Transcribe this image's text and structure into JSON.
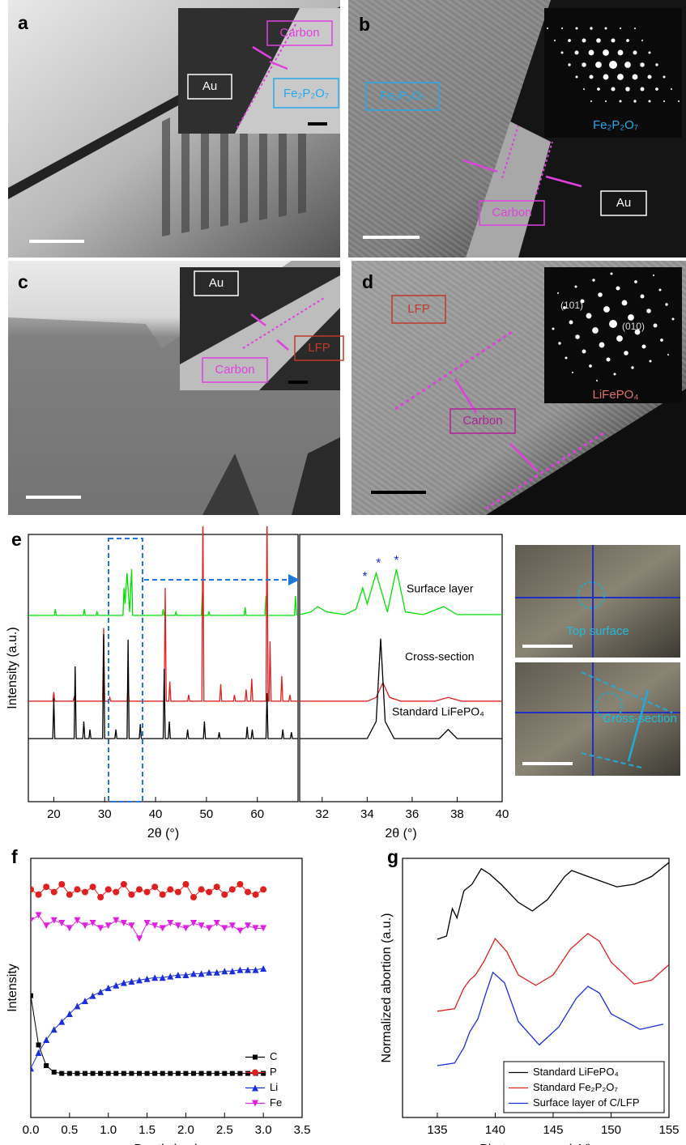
{
  "panels": [
    {
      "label": "a",
      "texts": [
        "Carbon",
        "Au",
        "Fe₂P₂O₇"
      ]
    },
    {
      "label": "b",
      "texts": [
        "Fe₂P₂O₇",
        "Fe₂P₂O₇",
        "Carbon",
        "Au"
      ]
    },
    {
      "label": "c",
      "texts": [
        "Au",
        "Carbon",
        "LFP"
      ]
    },
    {
      "label": "d",
      "texts": [
        "LFP",
        "Carbon",
        "(101)",
        "(010)",
        "LiFePO₄"
      ]
    }
  ],
  "photo_labels": [
    "Top surface",
    "Cross-section"
  ],
  "chart_data": [
    {
      "type": "line",
      "label": "e",
      "ylabel": "Intensity (a.u.)",
      "xlabel": "2θ (°)",
      "xlim": [
        15,
        68
      ],
      "ylim": [
        0,
        100
      ],
      "xticks": [
        20,
        30,
        40,
        50,
        60
      ],
      "series": [
        {
          "color": "#00e000",
          "x": [
            15,
            20.1,
            20.3,
            20.5,
            25.8,
            26,
            26.2,
            28.3,
            28.5,
            28.7,
            33.6,
            33.8,
            34,
            34.4,
            34.9,
            35.3,
            35.5,
            41.3,
            41.5,
            41.7,
            43.8,
            44,
            44.2,
            49,
            49.2,
            49.4,
            50.3,
            50.5,
            50.7,
            57.4,
            57.6,
            57.8,
            61.5,
            61.7,
            61.9,
            67.3,
            67.5,
            67.7
          ],
          "values": [
            69.7,
            69.7,
            72,
            69.7,
            69.7,
            72,
            69.7,
            69.7,
            71,
            69.7,
            69.7,
            80,
            74,
            85.5,
            71,
            87,
            69.7,
            69.7,
            72,
            69.7,
            69.7,
            71,
            69.7,
            69.7,
            78,
            69.7,
            69.7,
            71,
            69.7,
            69.7,
            72.7,
            69.7,
            69.7,
            77,
            69.7,
            69.7,
            77,
            69.7
          ]
        },
        {
          "color": "#e02020",
          "x": [
            15,
            19.8,
            20,
            20.2,
            23.8,
            24,
            24.2,
            29.6,
            29.8,
            30,
            30.8,
            31,
            31.2,
            34.4,
            34.6,
            34.8,
            41.7,
            41.9,
            42.1,
            42.6,
            42.8,
            43,
            46.3,
            46.5,
            46.7,
            49.1,
            49.3,
            49.5,
            52.6,
            52.8,
            53,
            55.3,
            55.5,
            55.7,
            57.6,
            57.8,
            58,
            58.7,
            58.9,
            59.1,
            61.7,
            61.9,
            62.1,
            62.3,
            62.5,
            62.7,
            64.6,
            64.8,
            65,
            66.2,
            66.4,
            66.6,
            68
          ],
          "values": [
            37.6,
            37.6,
            41,
            37.6,
            37.6,
            39,
            37.6,
            37.6,
            65,
            37.6,
            37.6,
            39,
            37.6,
            37.6,
            44,
            37.6,
            37.6,
            80,
            37.6,
            37.6,
            45,
            37.6,
            37.6,
            40,
            37.6,
            37.6,
            110,
            37.6,
            37.6,
            44,
            37.6,
            37.6,
            40,
            37.6,
            37.6,
            42,
            37.6,
            37.6,
            46,
            37.6,
            37.6,
            110,
            37.6,
            37.6,
            60,
            37.6,
            37.6,
            47,
            37.6,
            37.6,
            40,
            37.6,
            37.6
          ]
        },
        {
          "color": "#000000",
          "x": [
            15,
            19.8,
            20,
            20.2,
            24,
            24.2,
            24.4,
            25.7,
            25.9,
            26.1,
            26.9,
            27.1,
            27.3,
            29.6,
            29.8,
            30,
            32,
            32.2,
            32.4,
            34.4,
            34.6,
            34.8,
            36.8,
            37,
            37.2,
            41.5,
            41.7,
            41.9,
            42.5,
            42.7,
            42.9,
            46.1,
            46.3,
            46.5,
            49.4,
            49.6,
            49.8,
            52.3,
            52.5,
            52.7,
            57.8,
            58,
            58.2,
            58.8,
            59,
            59.2,
            61.7,
            61.9,
            62.1,
            64.8,
            65,
            65.2,
            66.5,
            66.7,
            66.9,
            68
          ],
          "values": [
            23.6,
            23.6,
            38.8,
            23.6,
            23.6,
            50.6,
            23.6,
            23.6,
            30,
            23.6,
            23.6,
            27,
            23.6,
            23.6,
            62.7,
            23.6,
            23.6,
            27,
            23.6,
            23.6,
            60.6,
            23.6,
            23.6,
            29,
            23.6,
            23.6,
            49.7,
            23.6,
            23.6,
            30,
            23.6,
            23.6,
            27,
            23.6,
            23.6,
            30,
            23.6,
            23.6,
            26,
            23.6,
            23.6,
            28,
            23.6,
            23.6,
            27,
            23.6,
            23.6,
            40.6,
            23.6,
            23.6,
            27,
            23.6,
            23.6,
            26,
            23.6,
            23.6
          ]
        }
      ]
    },
    {
      "type": "line",
      "xlabel": "2θ (°)",
      "xlim": [
        31,
        40
      ],
      "ylim": [
        0,
        100
      ],
      "xticks": [
        32,
        34,
        36,
        38,
        40
      ],
      "legend": "inline",
      "series": [
        {
          "name": "Surface layer",
          "color": "#00e000",
          "x": [
            31,
            31.5,
            31.8,
            32.2,
            33,
            33.5,
            33.8,
            34,
            34.4,
            34.9,
            35.3,
            35.7,
            36.5,
            37.4,
            38,
            40
          ],
          "values": [
            70,
            71,
            73,
            71,
            70,
            72,
            80,
            74,
            85.5,
            71,
            87,
            71,
            70,
            73,
            70,
            70
          ]
        },
        {
          "name": "Cross-section",
          "color": "#e02020",
          "x": [
            31,
            34,
            34.4,
            34.7,
            35,
            35.5,
            37,
            37.6,
            38.2,
            40
          ],
          "values": [
            37.6,
            37.6,
            39,
            44.5,
            39,
            37.6,
            37.6,
            39,
            37.6,
            37.6
          ]
        },
        {
          "name": "Standard LiFePO₄",
          "color": "#000000",
          "x": [
            31,
            34,
            34.4,
            34.6,
            34.8,
            35.2,
            37.2,
            37.6,
            38,
            40
          ],
          "values": [
            23.6,
            23.6,
            30,
            61,
            30,
            23.6,
            23.6,
            27,
            23.6,
            23.6
          ]
        }
      ],
      "annotations": [
        {
          "text": "*",
          "x": 33.9,
          "y": 84
        },
        {
          "text": "*",
          "x": 34.5,
          "y": 89
        },
        {
          "text": "*",
          "x": 35.3,
          "y": 90
        }
      ]
    },
    {
      "type": "line",
      "label": "f",
      "ylabel": "Intensity",
      "xlabel": "Depth (μm)",
      "xlim": [
        0,
        3.5
      ],
      "ylim": [
        0,
        100
      ],
      "xticks": [
        {
          "value": 0,
          "label": "0.0"
        },
        0.5,
        {
          "value": 1,
          "label": "1.0"
        },
        1.5,
        {
          "value": 2,
          "label": "2.0"
        },
        2.5,
        {
          "value": 3,
          "label": "3.0"
        },
        3.5
      ],
      "legend": "lower-right",
      "x": [
        0,
        0.1,
        0.2,
        0.3,
        0.4,
        0.5,
        0.6,
        0.7,
        0.8,
        0.9,
        1,
        1.1,
        1.2,
        1.3,
        1.4,
        1.5,
        1.6,
        1.7,
        1.8,
        1.9,
        2,
        2.1,
        2.2,
        2.3,
        2.4,
        2.5,
        2.6,
        2.7,
        2.8,
        2.9,
        3
      ],
      "series": [
        {
          "name": "C",
          "color": "#000000",
          "marker": "square",
          "values": [
            47,
            28,
            20,
            17.5,
            17,
            17,
            17,
            17,
            17,
            17,
            17,
            17,
            17,
            17,
            17,
            17,
            17,
            17,
            17,
            17,
            17,
            17,
            17,
            17,
            17,
            17,
            17,
            17,
            17,
            17,
            17
          ]
        },
        {
          "name": "P",
          "color": "#e02020",
          "marker": "circle",
          "values": [
            88,
            86,
            89,
            87,
            90,
            86,
            88,
            87,
            89,
            85,
            88,
            87,
            90,
            86,
            88,
            87,
            89,
            86,
            88,
            87,
            90,
            85,
            88,
            87,
            89,
            86,
            88,
            90,
            87,
            86,
            88
          ]
        },
        {
          "name": "Li",
          "color": "#1a2fd6",
          "marker": "triangle-up",
          "values": [
            19,
            25,
            30,
            34,
            37,
            40,
            43,
            45,
            47,
            48.5,
            50,
            51,
            52,
            52.5,
            53,
            53.5,
            54,
            54,
            54.5,
            55,
            55,
            55.5,
            55.5,
            56,
            56,
            56.5,
            56.5,
            57,
            57,
            57,
            57.5
          ]
        },
        {
          "name": "Fe",
          "color": "#e020e0",
          "marker": "triangle-down",
          "values": [
            76,
            78,
            74,
            76,
            75,
            73,
            76,
            74,
            75,
            73,
            74,
            76,
            75,
            74,
            69,
            75,
            74,
            73,
            75,
            74,
            73,
            75,
            74,
            73,
            75,
            73,
            74,
            72,
            74,
            73,
            73
          ]
        }
      ]
    },
    {
      "type": "line",
      "label": "g",
      "ylabel": "Normalized abortion (a.u.)",
      "xlabel": "Photon energy (eV)",
      "xlim": [
        132,
        155
      ],
      "ylim": [
        0,
        100
      ],
      "xticks": [
        135,
        140,
        145,
        150,
        155
      ],
      "legend": "lower-right",
      "series": [
        {
          "name": "Standard LiFePO₄",
          "color": "#000000",
          "x": [
            135,
            135.8,
            136.3,
            136.7,
            137.3,
            138,
            138.8,
            139.5,
            140.5,
            142,
            143.2,
            144.5,
            146,
            146.6,
            148,
            150.5,
            152,
            153.5,
            155
          ],
          "values": [
            68.8,
            70,
            80.6,
            77,
            87.5,
            90,
            96,
            94,
            90,
            83,
            79.7,
            84,
            93,
            95.3,
            93,
            89,
            90,
            93,
            98.4
          ]
        },
        {
          "name": "Standard Fe₂P₂O₇",
          "color": "#e02020",
          "x": [
            135,
            136.5,
            137.3,
            137.8,
            138.3,
            139,
            140,
            141,
            142,
            143.5,
            145,
            146.5,
            148,
            149,
            150,
            152,
            153.5,
            155
          ],
          "values": [
            41,
            42,
            50,
            53,
            55,
            60,
            69,
            64,
            55,
            51,
            55,
            65,
            71,
            68,
            60,
            51.5,
            53,
            59
          ]
        },
        {
          "name": "Surface layer of C/LFP",
          "color": "#1a2fd6",
          "x": [
            135,
            136.5,
            137.3,
            137.8,
            138.5,
            139.2,
            139.8,
            140.8,
            142,
            143.8,
            145.5,
            147,
            148,
            149,
            150,
            152.5,
            154.5
          ],
          "values": [
            20,
            21,
            27,
            33,
            38,
            48,
            56,
            52,
            37,
            28,
            35,
            46,
            50.6,
            48,
            40,
            34,
            36
          ]
        }
      ]
    }
  ]
}
